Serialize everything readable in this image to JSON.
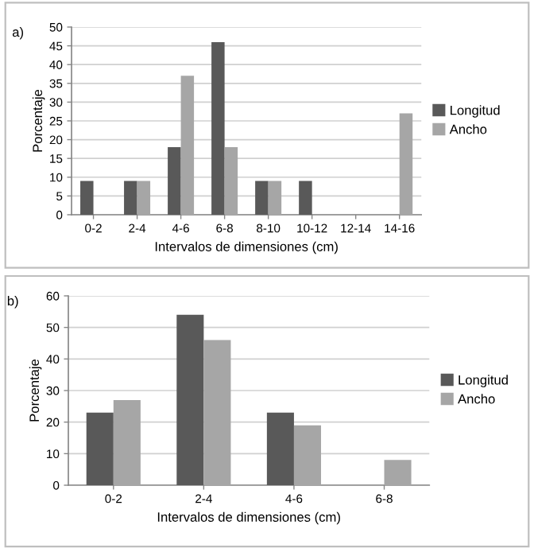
{
  "chart_data": [
    {
      "type": "bar",
      "title": "a)",
      "xlabel": "Intervalos de dimensiones (cm)",
      "ylabel": "Porcentaje",
      "categories": [
        "0-2",
        "2-4",
        "4-6",
        "6-8",
        "8-10",
        "10-12",
        "12-14",
        "14-16"
      ],
      "series": [
        {
          "name": "Longitud",
          "color": "#595959",
          "values": [
            9,
            9,
            18,
            46,
            9,
            9,
            0,
            0
          ]
        },
        {
          "name": "Ancho",
          "color": "#a6a6a6",
          "values": [
            0,
            9,
            37,
            18,
            9,
            0,
            0,
            27
          ]
        }
      ],
      "ylim": [
        0,
        50
      ],
      "yticks": [
        0,
        5,
        10,
        15,
        20,
        25,
        30,
        35,
        40,
        45,
        50
      ],
      "grid": "y",
      "legend": "right"
    },
    {
      "type": "bar",
      "title": "b)",
      "xlabel": "Intervalos de dimensiones (cm)",
      "ylabel": "Porcentaje",
      "categories": [
        "0-2",
        "2-4",
        "4-6",
        "6-8"
      ],
      "series": [
        {
          "name": "Longitud",
          "color": "#595959",
          "values": [
            23,
            54,
            23,
            0
          ]
        },
        {
          "name": "Ancho",
          "color": "#a6a6a6",
          "values": [
            27,
            46,
            19,
            8
          ]
        }
      ],
      "ylim": [
        0,
        60
      ],
      "yticks": [
        0,
        10,
        20,
        30,
        40,
        50,
        60
      ],
      "grid": "y",
      "legend": "right"
    }
  ]
}
